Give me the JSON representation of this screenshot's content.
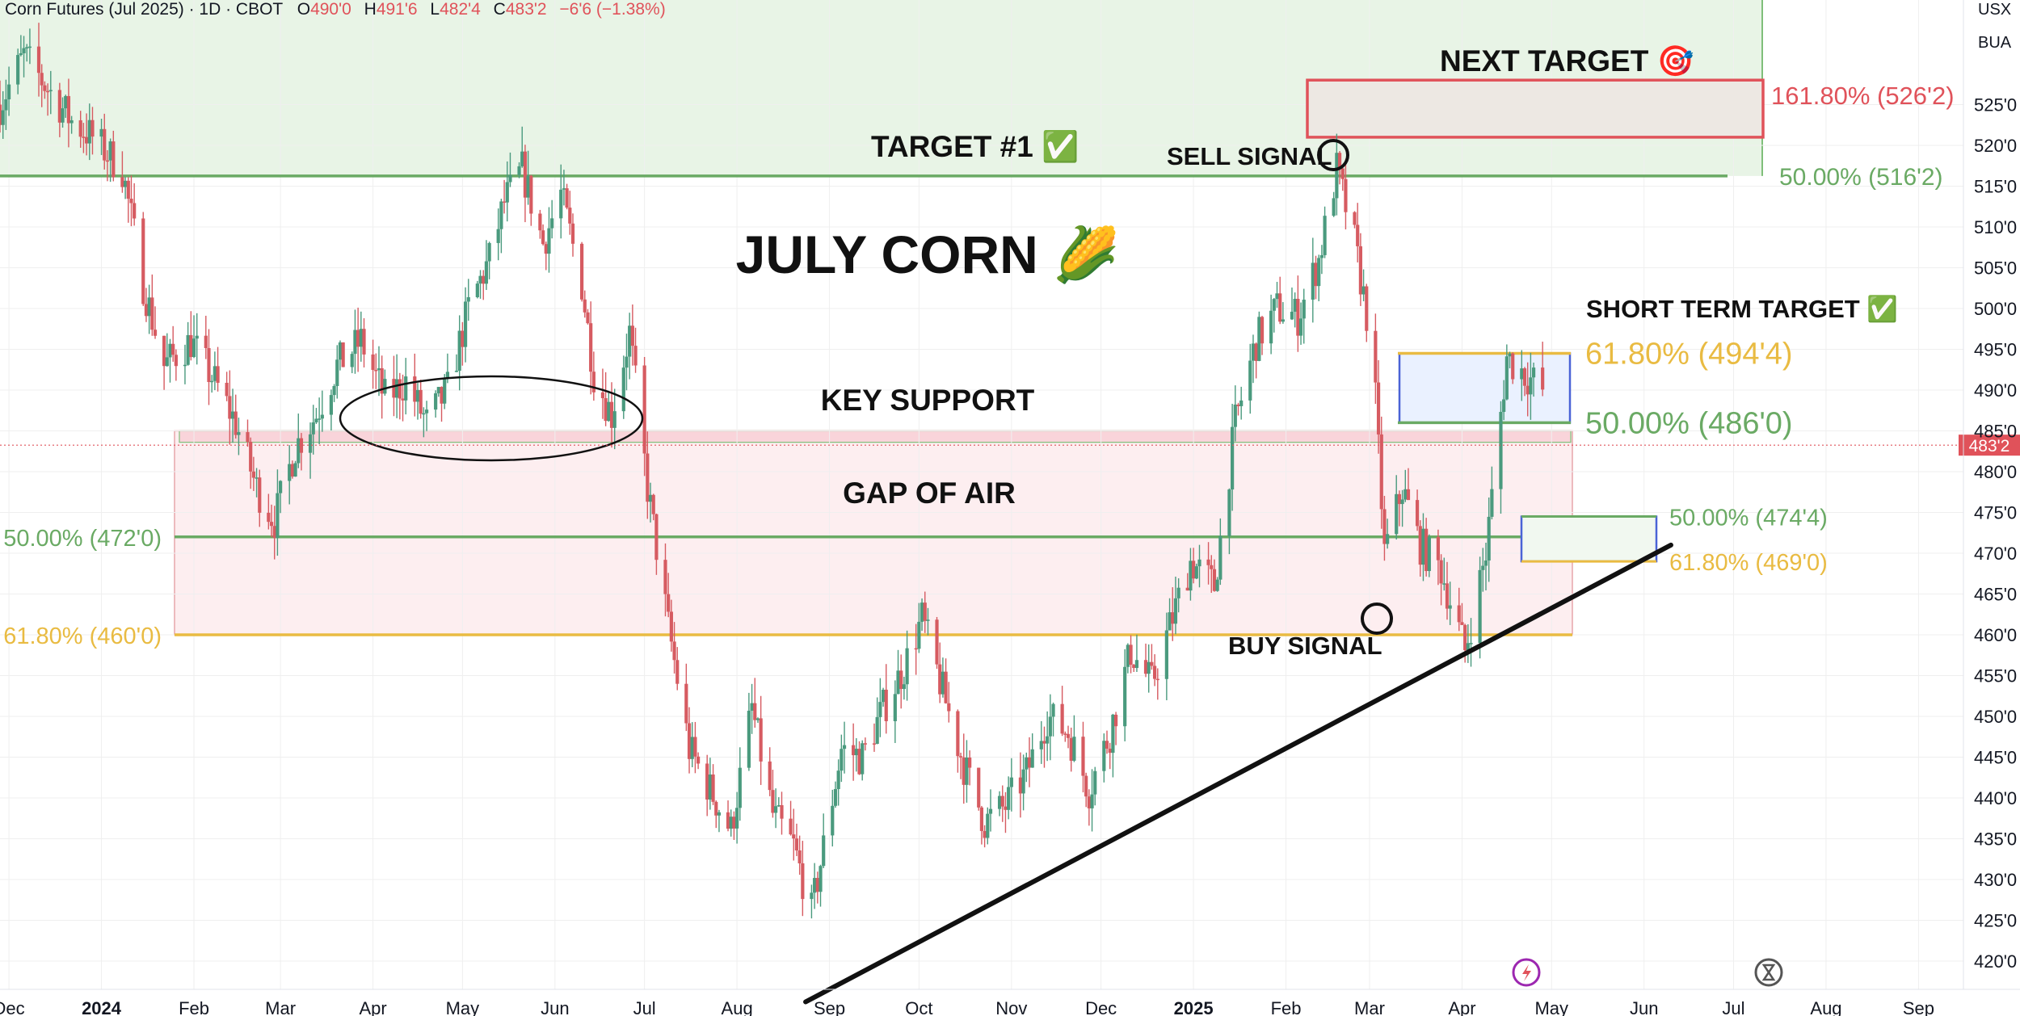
{
  "header": {
    "title": "Corn Futures (Jul 2025) · 1D · CBOT",
    "o_label": "O",
    "o_value": "490'0",
    "h_label": "H",
    "h_value": "491'6",
    "l_label": "L",
    "l_value": "482'4",
    "c_label": "C",
    "c_value": "483'2",
    "change": "−6'6 (−1.38%)"
  },
  "symbols": {
    "currency": "USX",
    "unit": "BUA"
  },
  "chart_data": {
    "type": "candlestick",
    "title": "JULY CORN",
    "y_axis": {
      "range": [
        416,
        540
      ],
      "ticks": [
        420,
        425,
        430,
        435,
        440,
        445,
        450,
        455,
        460,
        465,
        470,
        475,
        480,
        485,
        490,
        495,
        500,
        505,
        510,
        515,
        520,
        525
      ],
      "tick_labels": [
        "420'0",
        "425'0",
        "430'0",
        "435'0",
        "440'0",
        "445'0",
        "450'0",
        "455'0",
        "460'0",
        "465'0",
        "470'0",
        "475'0",
        "480'0",
        "485'0",
        "490'0",
        "495'0",
        "500'0",
        "505'0",
        "510'0",
        "515'0",
        "520'0",
        "525'0"
      ]
    },
    "x_axis": {
      "range": [
        "2023-11-28",
        "2025-10-05"
      ],
      "ticks": [
        {
          "date": "2023-12-01",
          "label": "Dec"
        },
        {
          "date": "2024-01-01",
          "label": "2024",
          "bold": true
        },
        {
          "date": "2024-02-01",
          "label": "Feb"
        },
        {
          "date": "2024-03-01",
          "label": "Mar"
        },
        {
          "date": "2024-04-01",
          "label": "Apr"
        },
        {
          "date": "2024-05-01",
          "label": "May"
        },
        {
          "date": "2024-06-01",
          "label": "Jun"
        },
        {
          "date": "2024-07-01",
          "label": "Jul"
        },
        {
          "date": "2024-08-01",
          "label": "Aug"
        },
        {
          "date": "2024-09-01",
          "label": "Sep"
        },
        {
          "date": "2024-10-01",
          "label": "Oct"
        },
        {
          "date": "2024-11-01",
          "label": "Nov"
        },
        {
          "date": "2024-12-01",
          "label": "Dec"
        },
        {
          "date": "2025-01-01",
          "label": "2025",
          "bold": true
        },
        {
          "date": "2025-02-01",
          "label": "Feb"
        },
        {
          "date": "2025-03-01",
          "label": "Mar"
        },
        {
          "date": "2025-04-01",
          "label": "Apr"
        },
        {
          "date": "2025-05-01",
          "label": "May"
        },
        {
          "date": "2025-06-01",
          "label": "Jun"
        },
        {
          "date": "2025-07-01",
          "label": "Jul"
        },
        {
          "date": "2025-08-01",
          "label": "Aug"
        },
        {
          "date": "2025-09-01",
          "label": "Sep"
        }
      ]
    },
    "price_path": [
      [
        "2023-11-28",
        525
      ],
      [
        "2023-12-06",
        531
      ],
      [
        "2023-12-14",
        527
      ],
      [
        "2023-12-22",
        523
      ],
      [
        "2023-12-29",
        521
      ],
      [
        "2024-01-08",
        517
      ],
      [
        "2024-01-15",
        503
      ],
      [
        "2024-01-22",
        493
      ],
      [
        "2024-01-31",
        496
      ],
      [
        "2024-02-08",
        491
      ],
      [
        "2024-02-15",
        486
      ],
      [
        "2024-02-22",
        478
      ],
      [
        "2024-02-28",
        474
      ],
      [
        "2024-03-06",
        483
      ],
      [
        "2024-03-13",
        487
      ],
      [
        "2024-03-20",
        493
      ],
      [
        "2024-03-28",
        496
      ],
      [
        "2024-04-05",
        489
      ],
      [
        "2024-04-12",
        491
      ],
      [
        "2024-04-19",
        486
      ],
      [
        "2024-04-26",
        490
      ],
      [
        "2024-05-03",
        500
      ],
      [
        "2024-05-10",
        506
      ],
      [
        "2024-05-15",
        513
      ],
      [
        "2024-05-21",
        517
      ],
      [
        "2024-05-28",
        508
      ],
      [
        "2024-06-03",
        514
      ],
      [
        "2024-06-10",
        503
      ],
      [
        "2024-06-14",
        492
      ],
      [
        "2024-06-20",
        487
      ],
      [
        "2024-06-26",
        497
      ],
      [
        "2024-07-02",
        478
      ],
      [
        "2024-07-09",
        461
      ],
      [
        "2024-07-16",
        446
      ],
      [
        "2024-07-23",
        441
      ],
      [
        "2024-07-30",
        436
      ],
      [
        "2024-08-06",
        451
      ],
      [
        "2024-08-13",
        438
      ],
      [
        "2024-08-20",
        434
      ],
      [
        "2024-08-26",
        426
      ],
      [
        "2024-08-30",
        434
      ],
      [
        "2024-09-05",
        446
      ],
      [
        "2024-09-12",
        445
      ],
      [
        "2024-09-19",
        451
      ],
      [
        "2024-09-26",
        456
      ],
      [
        "2024-10-02",
        462
      ],
      [
        "2024-10-09",
        453
      ],
      [
        "2024-10-16",
        444
      ],
      [
        "2024-10-23",
        437
      ],
      [
        "2024-10-30",
        439
      ],
      [
        "2024-11-06",
        443
      ],
      [
        "2024-11-13",
        450
      ],
      [
        "2024-11-20",
        448
      ],
      [
        "2024-11-27",
        441
      ],
      [
        "2024-12-04",
        448
      ],
      [
        "2024-12-11",
        458
      ],
      [
        "2024-12-18",
        454
      ],
      [
        "2024-12-24",
        461
      ],
      [
        "2024-12-31",
        469
      ],
      [
        "2025-01-08",
        466
      ],
      [
        "2025-01-15",
        486
      ],
      [
        "2025-01-22",
        496
      ],
      [
        "2025-01-29",
        500
      ],
      [
        "2025-02-05",
        499
      ],
      [
        "2025-02-12",
        506
      ],
      [
        "2025-02-18",
        517
      ],
      [
        "2025-02-24",
        508
      ],
      [
        "2025-03-02",
        495
      ],
      [
        "2025-03-06",
        470
      ],
      [
        "2025-03-12",
        478
      ],
      [
        "2025-03-18",
        471
      ],
      [
        "2025-03-25",
        468
      ],
      [
        "2025-04-02",
        458
      ],
      [
        "2025-04-09",
        470
      ],
      [
        "2025-04-16",
        494
      ],
      [
        "2025-04-22",
        492
      ],
      [
        "2025-04-28",
        490
      ]
    ],
    "last_price": {
      "value": 483.25,
      "label": "483'2"
    },
    "annotations": [
      {
        "text": "JULY CORN 🌽",
        "size": "xl"
      },
      {
        "text": "NEXT TARGET 🎯"
      },
      {
        "text": "TARGET #1 ✅"
      },
      {
        "text": "SELL SIGNAL"
      },
      {
        "text": "BUY SIGNAL"
      },
      {
        "text": "KEY SUPPORT"
      },
      {
        "text": "GAP OF AIR"
      },
      {
        "text": "SHORT TERM TARGET ✅"
      }
    ],
    "levels": [
      {
        "label": "161.80% (526'2)",
        "value": 526.25,
        "color": "#e0525a"
      },
      {
        "label": "50.00% (516'2)",
        "value": 516.25,
        "color": "#6aaa64"
      },
      {
        "label": "61.80% (494'4)",
        "value": 494.5,
        "color": "#e9bb42"
      },
      {
        "label": "50.00% (486'0)",
        "value": 486.0,
        "color": "#6aaa64"
      },
      {
        "label": "50.00% (472'0)",
        "value": 472.0,
        "color": "#6aaa64"
      },
      {
        "label": "61.80% (460'0)",
        "value": 460.0,
        "color": "#e9bb42"
      },
      {
        "label": "50.00% (474'4)",
        "value": 474.5,
        "color": "#6aaa64"
      },
      {
        "label": "61.80% (469'0)",
        "value": 469.0,
        "color": "#e9bb42"
      }
    ],
    "zones": [
      {
        "name": "upper-target-zone",
        "from": 516.25,
        "to": 540,
        "color": "#e8f4e6"
      },
      {
        "name": "gap-of-air",
        "from": 460,
        "to": 485,
        "color": "#fdeef0"
      }
    ],
    "trendline": [
      [
        "2024-08-24",
        415
      ],
      [
        "2025-06-10",
        471
      ]
    ],
    "colors": {
      "up": "#4a9a7e",
      "down": "#d65b61",
      "grid": "#efefef"
    }
  }
}
